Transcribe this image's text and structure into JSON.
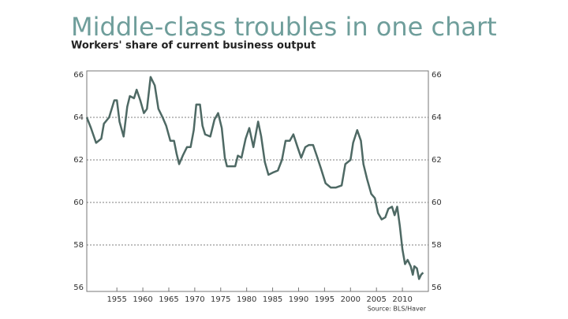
{
  "chart_data": {
    "type": "line",
    "title": "Middle-class troubles in one chart",
    "subtitle": "Workers' share of current business output",
    "source": "Source: BLS/Haver",
    "x": [
      1949.2,
      1950,
      1951,
      1952,
      1952.5,
      1953.5,
      1954.5,
      1955,
      1955.5,
      1956.3,
      1957,
      1957.5,
      1958.3,
      1958.8,
      1959.5,
      1960.2,
      1960.8,
      1961.5,
      1962.3,
      1963,
      1963.8,
      1964.5,
      1965.3,
      1966,
      1966.5,
      1967,
      1967.7,
      1968.5,
      1969.2,
      1969.8,
      1970.3,
      1971,
      1971.5,
      1972,
      1973,
      1973.8,
      1974.5,
      1975.2,
      1975.8,
      1976.2,
      1977,
      1977.8,
      1978.3,
      1979,
      1979.8,
      1980.5,
      1981.3,
      1982.2,
      1982.8,
      1983.5,
      1984.2,
      1985,
      1986,
      1986.8,
      1987.5,
      1988.3,
      1989,
      1989.8,
      1990.5,
      1991.3,
      1992,
      1992.8,
      1993.5,
      1994.3,
      1995.2,
      1996.2,
      1997.2,
      1998.3,
      1999,
      2000,
      2000.5,
      2001.3,
      2002,
      2002.5,
      2003.2,
      2004,
      2004.7,
      2005.3,
      2006,
      2006.7,
      2007.3,
      2008,
      2008.5,
      2009,
      2009.5,
      2010,
      2010.5,
      2011,
      2011.6,
      2012,
      2012.3,
      2012.8,
      2013.2,
      2013.6,
      2014
    ],
    "values": [
      64.0,
      63.5,
      62.8,
      63.0,
      63.7,
      64.0,
      64.8,
      64.8,
      63.8,
      63.1,
      64.5,
      65.0,
      64.9,
      65.3,
      64.8,
      64.2,
      64.4,
      65.9,
      65.5,
      64.4,
      64.0,
      63.6,
      62.9,
      62.9,
      62.3,
      61.8,
      62.2,
      62.6,
      62.6,
      63.4,
      64.6,
      64.6,
      63.6,
      63.2,
      63.1,
      63.9,
      64.2,
      63.5,
      62.1,
      61.7,
      61.7,
      61.7,
      62.2,
      62.1,
      63.0,
      63.5,
      62.6,
      63.8,
      63.1,
      61.9,
      61.3,
      61.4,
      61.5,
      62.0,
      62.9,
      62.9,
      63.2,
      62.6,
      62.1,
      62.6,
      62.7,
      62.7,
      62.2,
      61.6,
      60.9,
      60.7,
      60.7,
      60.8,
      61.8,
      62.0,
      62.8,
      63.4,
      62.9,
      61.8,
      61.1,
      60.4,
      60.2,
      59.5,
      59.2,
      59.3,
      59.7,
      59.8,
      59.4,
      59.8,
      58.9,
      57.8,
      57.1,
      57.3,
      57.0,
      56.6,
      57.0,
      56.9,
      56.4,
      56.6,
      56.7
    ],
    "color": "#4e6964",
    "xlim": [
      1949.2,
      2015
    ],
    "xticks": [
      1955,
      1960,
      1965,
      1970,
      1975,
      1980,
      1985,
      1990,
      1995,
      2000,
      2005,
      2010
    ],
    "ylim": [
      56,
      66
    ],
    "yticks": [
      56,
      58,
      60,
      62,
      64,
      66
    ],
    "grid": true
  }
}
